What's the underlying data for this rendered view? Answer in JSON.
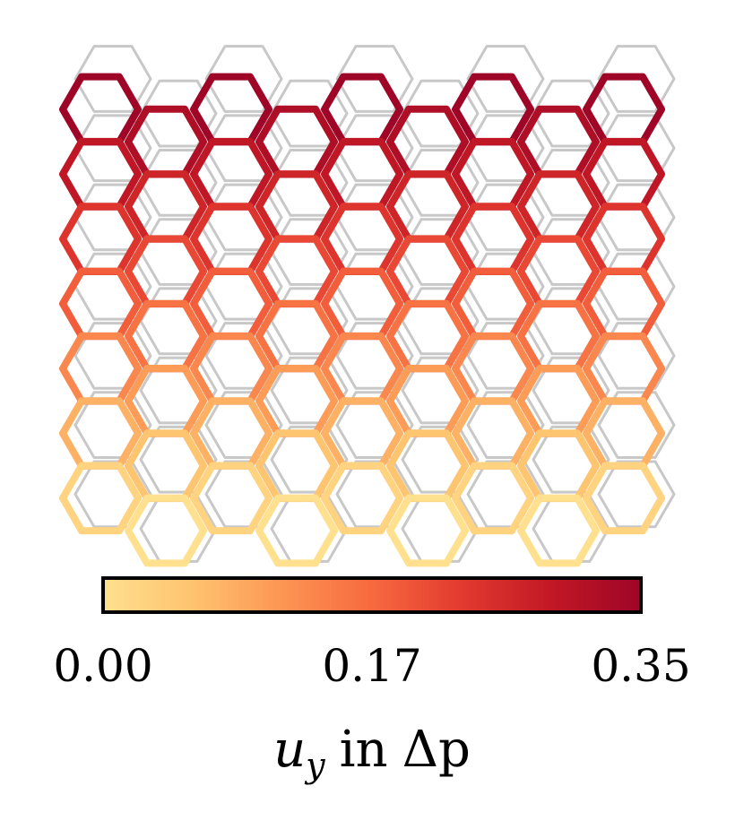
{
  "figure": {
    "lattice": {
      "rows": 7,
      "columns": 5,
      "undeformed_color": "#c8c8c8"
    },
    "colorbar": {
      "tick_labels": [
        "0.00",
        "0.17",
        "0.35"
      ],
      "vmin": 0.0,
      "vmax": 0.35,
      "label_symbol": "u",
      "label_subscript": "y",
      "label_text": "in",
      "label_delta": "Δp",
      "colormap": [
        "#ffe08e",
        "#fec36f",
        "#fc9553",
        "#f7693f",
        "#e23a2f",
        "#c21826",
        "#9e0527"
      ]
    }
  }
}
